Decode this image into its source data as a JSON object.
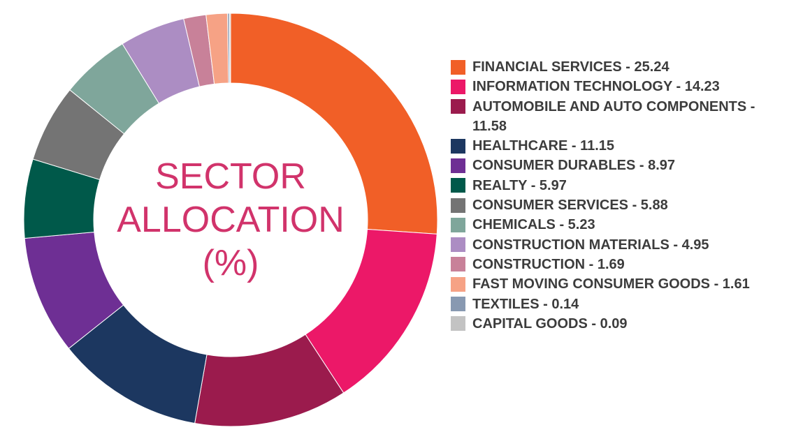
{
  "chart_data": {
    "type": "pie",
    "title": "SECTOR ALLOCATION (%)",
    "title_lines": [
      "SECTOR",
      "ALLOCATION",
      "(%)"
    ],
    "categories": [
      "FINANCIAL SERVICES",
      "INFORMATION TECHNOLOGY",
      "AUTOMOBILE AND AUTO COMPONENTS",
      "HEALTHCARE",
      "CONSUMER DURABLES",
      "REALTY",
      "CONSUMER SERVICES",
      "CHEMICALS",
      "CONSTRUCTION MATERIALS",
      "CONSTRUCTION",
      "FAST MOVING CONSUMER GOODS",
      "TEXTILES",
      "CAPITAL GOODS"
    ],
    "values": [
      25.24,
      14.23,
      11.58,
      11.15,
      8.97,
      5.97,
      5.88,
      5.23,
      4.95,
      1.69,
      1.61,
      0.14,
      0.09
    ],
    "colors": [
      "#f15f27",
      "#ec1868",
      "#9b1b4d",
      "#1c3760",
      "#6e2f94",
      "#00594a",
      "#747474",
      "#7fa69b",
      "#ac8dc3",
      "#c88199",
      "#f6a285",
      "#8899b1",
      "#c3c3c3"
    ],
    "legend_labels": [
      "FINANCIAL SERVICES - 25.24",
      "INFORMATION TECHNOLOGY - 14.23",
      "AUTOMOBILE AND AUTO COMPONENTS - 11.58",
      "HEALTHCARE - 11.15",
      "CONSUMER DURABLES - 8.97",
      "REALTY - 5.97",
      "CONSUMER SERVICES - 5.88",
      "CHEMICALS - 5.23",
      "CONSTRUCTION MATERIALS - 4.95",
      "CONSTRUCTION - 1.69",
      "FAST MOVING CONSUMER GOODS - 1.61",
      "TEXTILES - 0.14",
      "CAPITAL GOODS - 0.09"
    ],
    "legend_position": "right",
    "donut": true
  }
}
